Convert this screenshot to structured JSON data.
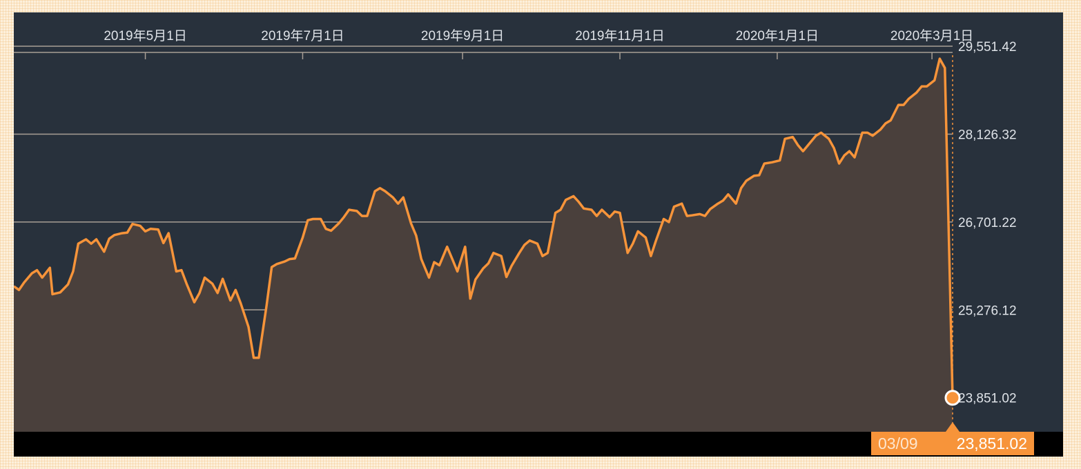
{
  "colors": {
    "panel": "#28313c",
    "line": "#f7943a",
    "area": "#4a403c",
    "grid": "#a89f95",
    "page_bg": "#fdf0dc"
  },
  "tooltip": {
    "date": "03/09",
    "value": "23,851.02"
  },
  "chart_data": {
    "type": "area",
    "x_tick_labels": [
      "2019年5月1日",
      "2019年7月1日",
      "2019年9月1日",
      "2019年11月1日",
      "2020年1月1日",
      "2020年3月1日"
    ],
    "x_ticks": [
      "2019-05-01",
      "2019-07-01",
      "2019-09-01",
      "2019-11-01",
      "2020-01-01",
      "2020-03-01"
    ],
    "y_tick_labels": [
      "29,551.42",
      "28,126.32",
      "26,701.22",
      "25,276.12",
      "23,851.02"
    ],
    "y_ticks": [
      29551.42,
      28126.32,
      26701.22,
      25276.12,
      23851.02
    ],
    "ylim": [
      23300,
      30100
    ],
    "xlim": [
      "2019-03-11",
      "2020-03-09"
    ],
    "grid": "horizontal",
    "last_point": {
      "x": "2020-03-09",
      "y": 23851.02
    },
    "series": [
      {
        "points": [
          [
            "2019-03-11",
            25660
          ],
          [
            "2019-03-13",
            25600
          ],
          [
            "2019-03-15",
            25720
          ],
          [
            "2019-03-18",
            25870
          ],
          [
            "2019-03-20",
            25920
          ],
          [
            "2019-03-22",
            25800
          ],
          [
            "2019-03-25",
            25960
          ],
          [
            "2019-03-26",
            25530
          ],
          [
            "2019-03-29",
            25560
          ],
          [
            "2019-04-01",
            25690
          ],
          [
            "2019-04-03",
            25900
          ],
          [
            "2019-04-05",
            26350
          ],
          [
            "2019-04-08",
            26420
          ],
          [
            "2019-04-10",
            26350
          ],
          [
            "2019-04-12",
            26420
          ],
          [
            "2019-04-15",
            26220
          ],
          [
            "2019-04-17",
            26430
          ],
          [
            "2019-04-19",
            26490
          ],
          [
            "2019-04-22",
            26520
          ],
          [
            "2019-04-24",
            26530
          ],
          [
            "2019-04-26",
            26670
          ],
          [
            "2019-04-29",
            26640
          ],
          [
            "2019-05-01",
            26550
          ],
          [
            "2019-05-03",
            26590
          ],
          [
            "2019-05-06",
            26580
          ],
          [
            "2019-05-08",
            26360
          ],
          [
            "2019-05-10",
            26520
          ],
          [
            "2019-05-13",
            25900
          ],
          [
            "2019-05-15",
            25920
          ],
          [
            "2019-05-17",
            25700
          ],
          [
            "2019-05-20",
            25400
          ],
          [
            "2019-05-22",
            25550
          ],
          [
            "2019-05-24",
            25800
          ],
          [
            "2019-05-27",
            25700
          ],
          [
            "2019-05-29",
            25550
          ],
          [
            "2019-05-31",
            25780
          ],
          [
            "2019-06-03",
            25430
          ],
          [
            "2019-06-05",
            25600
          ],
          [
            "2019-06-07",
            25380
          ],
          [
            "2019-06-10",
            25000
          ],
          [
            "2019-06-12",
            24500
          ],
          [
            "2019-06-14",
            24500
          ],
          [
            "2019-06-17",
            25350
          ],
          [
            "2019-06-19",
            25970
          ],
          [
            "2019-06-21",
            26020
          ],
          [
            "2019-06-24",
            26060
          ],
          [
            "2019-06-26",
            26100
          ],
          [
            "2019-06-28",
            26110
          ],
          [
            "2019-07-01",
            26450
          ],
          [
            "2019-07-03",
            26730
          ],
          [
            "2019-07-05",
            26750
          ],
          [
            "2019-07-08",
            26750
          ],
          [
            "2019-07-10",
            26590
          ],
          [
            "2019-07-12",
            26560
          ],
          [
            "2019-07-15",
            26680
          ],
          [
            "2019-07-17",
            26780
          ],
          [
            "2019-07-19",
            26900
          ],
          [
            "2019-07-22",
            26880
          ],
          [
            "2019-07-24",
            26800
          ],
          [
            "2019-07-26",
            26800
          ],
          [
            "2019-07-29",
            27200
          ],
          [
            "2019-07-31",
            27250
          ],
          [
            "2019-08-02",
            27200
          ],
          [
            "2019-08-05",
            27100
          ],
          [
            "2019-08-07",
            27000
          ],
          [
            "2019-08-09",
            27100
          ],
          [
            "2019-08-12",
            26680
          ],
          [
            "2019-08-14",
            26480
          ],
          [
            "2019-08-16",
            26100
          ],
          [
            "2019-08-19",
            25800
          ],
          [
            "2019-08-21",
            26050
          ],
          [
            "2019-08-23",
            26000
          ],
          [
            "2019-08-26",
            26300
          ],
          [
            "2019-08-28",
            26100
          ],
          [
            "2019-08-30",
            25900
          ],
          [
            "2019-09-02",
            26300
          ],
          [
            "2019-09-04",
            25460
          ],
          [
            "2019-09-06",
            25770
          ],
          [
            "2019-09-09",
            25950
          ],
          [
            "2019-09-11",
            26030
          ],
          [
            "2019-09-13",
            26200
          ],
          [
            "2019-09-16",
            26150
          ],
          [
            "2019-09-18",
            25810
          ],
          [
            "2019-09-20",
            25990
          ],
          [
            "2019-09-23",
            26200
          ],
          [
            "2019-09-25",
            26330
          ],
          [
            "2019-09-27",
            26400
          ],
          [
            "2019-09-30",
            26350
          ],
          [
            "2019-10-02",
            26150
          ],
          [
            "2019-10-04",
            26200
          ],
          [
            "2019-10-07",
            26850
          ],
          [
            "2019-10-09",
            26900
          ],
          [
            "2019-10-11",
            27060
          ],
          [
            "2019-10-14",
            27120
          ],
          [
            "2019-10-16",
            27030
          ],
          [
            "2019-10-18",
            26920
          ],
          [
            "2019-10-21",
            26900
          ],
          [
            "2019-10-23",
            26800
          ],
          [
            "2019-10-25",
            26900
          ],
          [
            "2019-10-28",
            26780
          ],
          [
            "2019-10-30",
            26870
          ],
          [
            "2019-11-01",
            26850
          ],
          [
            "2019-11-04",
            26200
          ],
          [
            "2019-11-06",
            26350
          ],
          [
            "2019-11-08",
            26550
          ],
          [
            "2019-11-11",
            26450
          ],
          [
            "2019-11-13",
            26150
          ],
          [
            "2019-11-15",
            26400
          ],
          [
            "2019-11-18",
            26750
          ],
          [
            "2019-11-20",
            26700
          ],
          [
            "2019-11-22",
            26950
          ],
          [
            "2019-11-25",
            27000
          ],
          [
            "2019-11-27",
            26800
          ],
          [
            "2019-11-29",
            26810
          ],
          [
            "2019-12-02",
            26830
          ],
          [
            "2019-12-04",
            26800
          ],
          [
            "2019-12-06",
            26910
          ],
          [
            "2019-12-09",
            27000
          ],
          [
            "2019-12-11",
            27050
          ],
          [
            "2019-12-13",
            27150
          ],
          [
            "2019-12-16",
            27000
          ],
          [
            "2019-12-18",
            27250
          ],
          [
            "2019-12-20",
            27370
          ],
          [
            "2019-12-23",
            27450
          ],
          [
            "2019-12-25",
            27460
          ],
          [
            "2019-12-27",
            27650
          ],
          [
            "2019-12-30",
            27670
          ],
          [
            "2020-01-02",
            27700
          ],
          [
            "2020-01-04",
            28050
          ],
          [
            "2020-01-07",
            28080
          ],
          [
            "2020-01-09",
            27950
          ],
          [
            "2020-01-11",
            27850
          ],
          [
            "2020-01-14",
            28000
          ],
          [
            "2020-01-16",
            28100
          ],
          [
            "2020-01-18",
            28150
          ],
          [
            "2020-01-21",
            28050
          ],
          [
            "2020-01-23",
            27900
          ],
          [
            "2020-01-25",
            27650
          ],
          [
            "2020-01-27",
            27780
          ],
          [
            "2020-01-29",
            27850
          ],
          [
            "2020-01-31",
            27750
          ],
          [
            "2020-02-03",
            28150
          ],
          [
            "2020-02-05",
            28150
          ],
          [
            "2020-02-07",
            28100
          ],
          [
            "2020-02-10",
            28200
          ],
          [
            "2020-02-12",
            28300
          ],
          [
            "2020-02-14",
            28350
          ],
          [
            "2020-02-17",
            28600
          ],
          [
            "2020-02-19",
            28600
          ],
          [
            "2020-02-21",
            28700
          ],
          [
            "2020-02-24",
            28800
          ],
          [
            "2020-02-26",
            28900
          ],
          [
            "2020-02-28",
            28900
          ],
          [
            "2020-03-02",
            29000
          ],
          [
            "2020-03-04",
            29350
          ],
          [
            "2020-03-06",
            29200
          ],
          [
            "2020-03-09",
            23851.02
          ]
        ]
      }
    ]
  }
}
